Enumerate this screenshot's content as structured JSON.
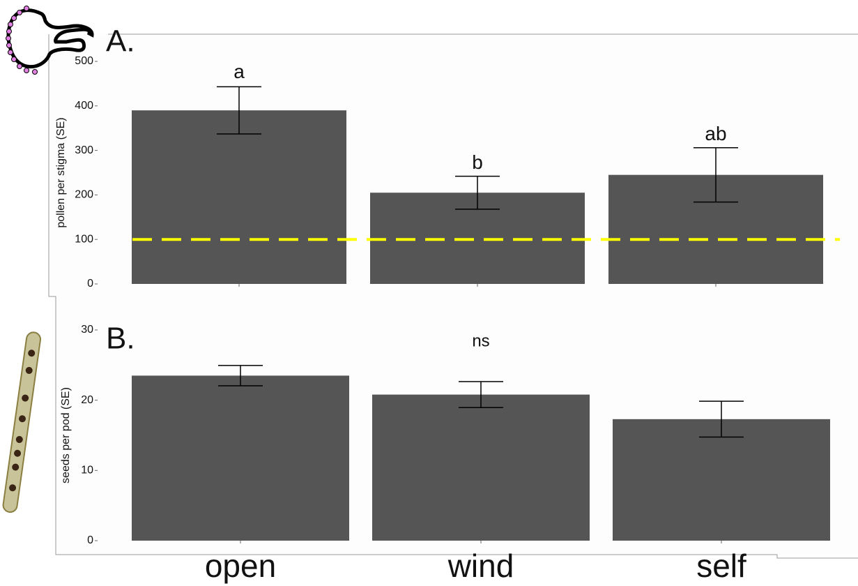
{
  "chart_data": [
    {
      "type": "bar",
      "panel_label": "A.",
      "y_label": "pollen per stigma (SE)",
      "categories": [
        null,
        null,
        null
      ],
      "values": [
        390,
        205,
        245
      ],
      "errors": [
        53,
        37,
        61
      ],
      "annotations": [
        "a",
        "b",
        "ab"
      ],
      "color": "#555555",
      "hline": 100,
      "hline_color": "#ffff00",
      "ylim": [
        0,
        500
      ],
      "yticks": [
        0,
        100,
        200,
        300,
        400,
        500
      ]
    },
    {
      "type": "bar",
      "panel_label": "B.",
      "y_label": "seeds per pod (SE)",
      "categories": [
        "open",
        "wind",
        "self"
      ],
      "values": [
        23.5,
        20.8,
        17.3
      ],
      "errors": [
        1.45,
        1.85,
        2.55
      ],
      "annotation": "ns",
      "color": "#555555",
      "ylim": [
        0,
        30
      ],
      "yticks": [
        0,
        10,
        20,
        30
      ]
    }
  ]
}
